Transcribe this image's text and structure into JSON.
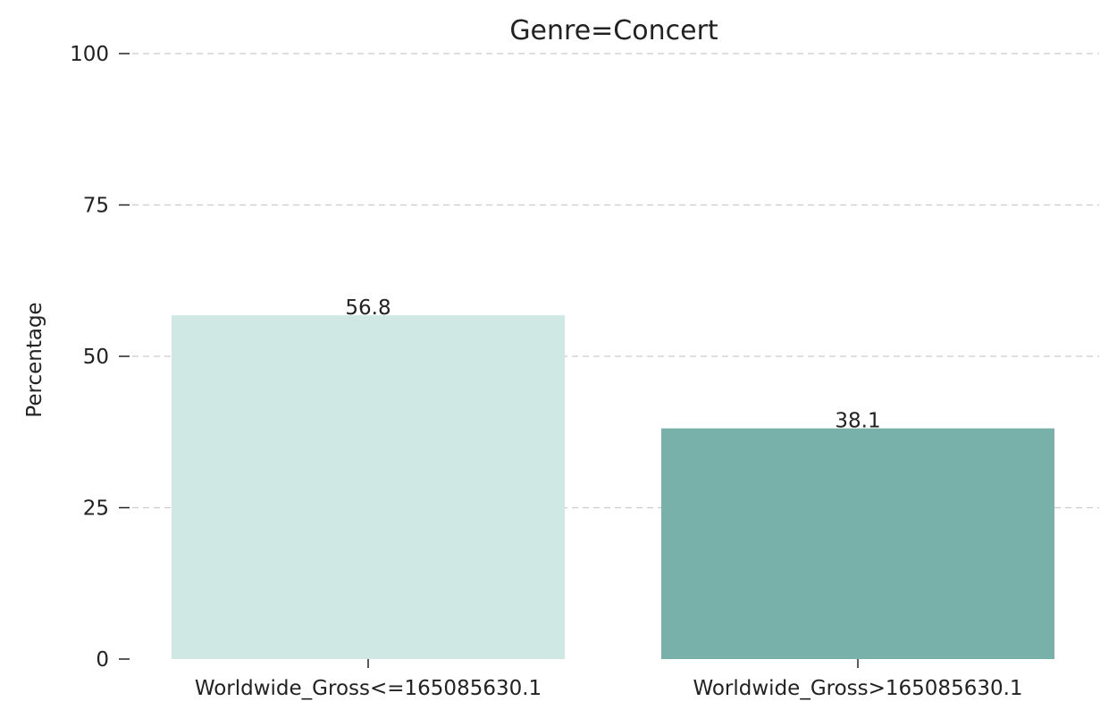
{
  "chart_data": {
    "type": "bar",
    "title": "Genre=Concert",
    "ylabel": "Percentage",
    "xlabel": "",
    "categories": [
      "Worldwide_Gross<=165085630.1",
      "Worldwide_Gross>165085630.1"
    ],
    "values": [
      56.8,
      38.1
    ],
    "value_labels": [
      "56.8",
      "38.1"
    ],
    "bar_colors": [
      "#cfe8e4",
      "#78b0aa"
    ],
    "ylim": [
      0,
      100
    ],
    "yticks": [
      0,
      25,
      50,
      75,
      100
    ],
    "ytick_labels": [
      "0",
      "25",
      "50",
      "75",
      "100"
    ],
    "grid": "horizontal-dashed",
    "legend": "none"
  }
}
